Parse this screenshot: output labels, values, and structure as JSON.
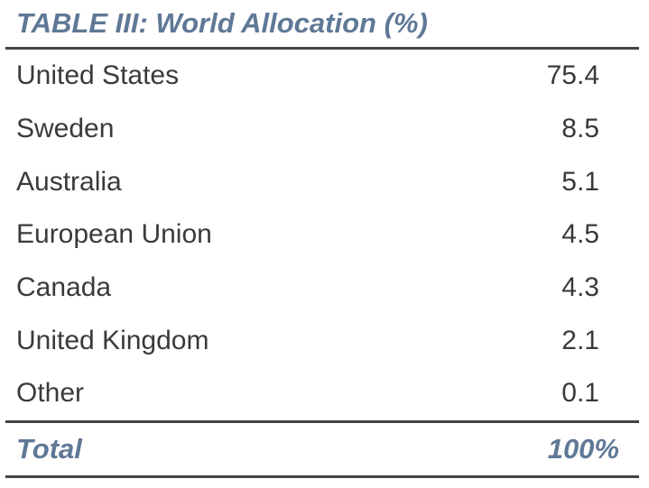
{
  "table": {
    "title": "TABLE III: World Allocation (%)",
    "rows": [
      {
        "label": "United States",
        "value": "75.4"
      },
      {
        "label": "Sweden",
        "value": "8.5"
      },
      {
        "label": "Australia",
        "value": "5.1"
      },
      {
        "label": "European Union",
        "value": "4.5"
      },
      {
        "label": "Canada",
        "value": "4.3"
      },
      {
        "label": "United Kingdom",
        "value": "2.1"
      },
      {
        "label": "Other",
        "value": "0.1"
      }
    ],
    "total": {
      "label": "Total",
      "value": "100%"
    }
  },
  "colors": {
    "accent": "#5f7896",
    "text": "#3a3a3a",
    "rule": "#444444"
  }
}
